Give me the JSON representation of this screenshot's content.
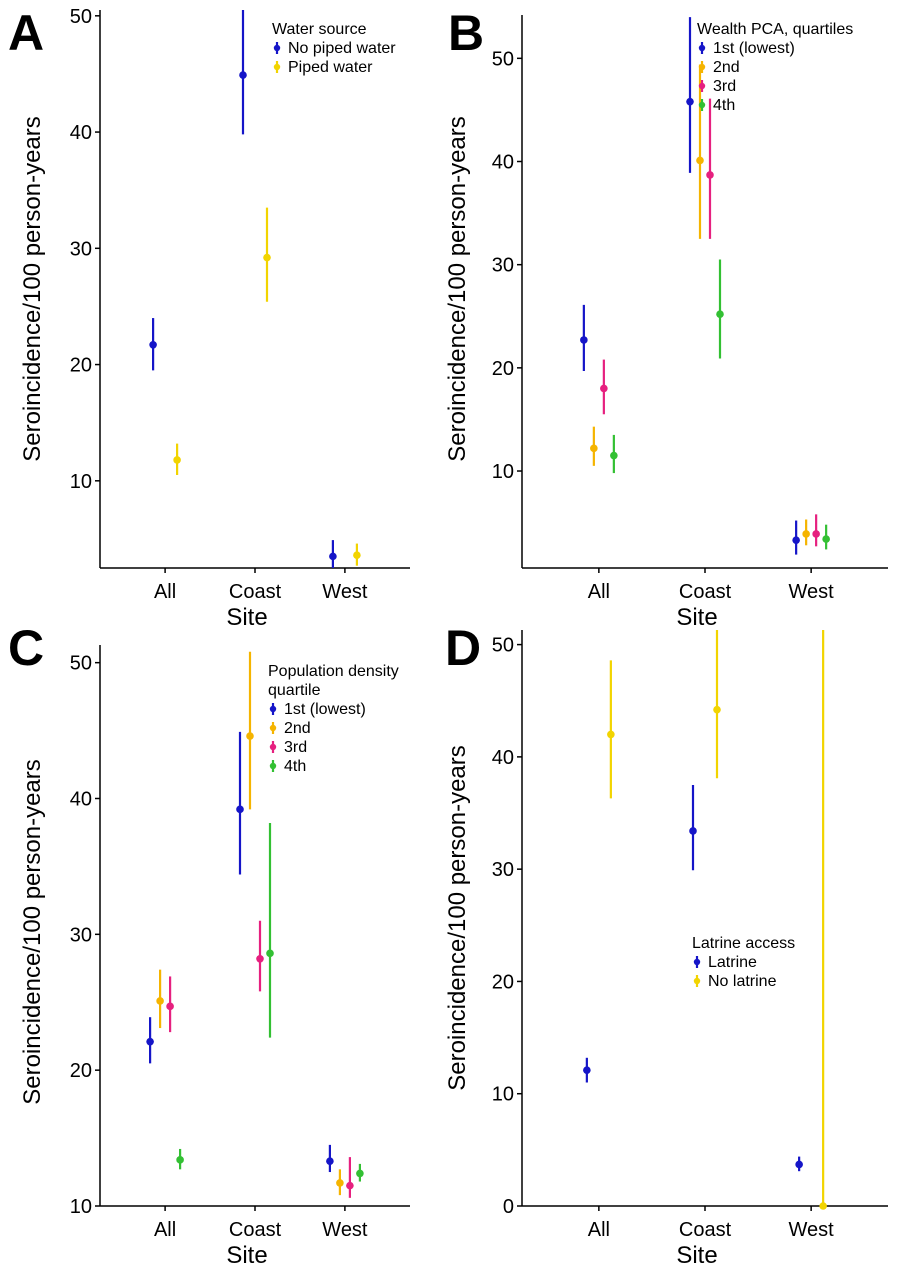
{
  "chart_data": [
    {
      "type": "scatter",
      "panel": "A",
      "ylabel": "Seroincidence/100 person-years",
      "xlabel": "Site",
      "categories": [
        "All",
        "Coast",
        "West"
      ],
      "ylim": [
        2.5,
        50.5
      ],
      "yticks": [
        10,
        20,
        30,
        40,
        50
      ],
      "legend_title": "Water source",
      "legend_position": "top-right",
      "series": [
        {
          "name": "No piped water",
          "color": "#1515c8",
          "points": [
            {
              "x": "All",
              "y": 21.7,
              "low": 19.5,
              "high": 24.0
            },
            {
              "x": "Coast",
              "y": 44.9,
              "low": 39.8,
              "high": 50.5
            },
            {
              "x": "West",
              "y": 3.5,
              "low": 2.5,
              "high": 4.9
            }
          ]
        },
        {
          "name": "Piped water",
          "color": "#f2d400",
          "points": [
            {
              "x": "All",
              "y": 11.8,
              "low": 10.5,
              "high": 13.2
            },
            {
              "x": "Coast",
              "y": 29.2,
              "low": 25.4,
              "high": 33.5
            },
            {
              "x": "West",
              "y": 3.6,
              "low": 2.7,
              "high": 4.6
            }
          ]
        }
      ]
    },
    {
      "type": "scatter",
      "panel": "B",
      "ylabel": "Seroincidence/100 person-years",
      "xlabel": "Site",
      "categories": [
        "All",
        "Coast",
        "West"
      ],
      "ylim": [
        0.6,
        54.2
      ],
      "yticks": [
        10,
        20,
        30,
        40,
        50
      ],
      "legend_title": "Wealth PCA, quartiles",
      "legend_position": "top-right",
      "series": [
        {
          "name": "1st (lowest)",
          "color": "#1515c8",
          "points": [
            {
              "x": "All",
              "y": 22.7,
              "low": 19.7,
              "high": 26.1
            },
            {
              "x": "Coast",
              "y": 45.8,
              "low": 38.9,
              "high": 54.0
            },
            {
              "x": "West",
              "y": 3.3,
              "low": 1.9,
              "high": 5.2
            }
          ]
        },
        {
          "name": "2nd",
          "color": "#f5b400",
          "points": [
            {
              "x": "All",
              "y": 12.2,
              "low": 10.5,
              "high": 14.3
            },
            {
              "x": "Coast",
              "y": 40.1,
              "low": 32.5,
              "high": 49.4
            },
            {
              "x": "West",
              "y": 3.9,
              "low": 2.8,
              "high": 5.3
            }
          ]
        },
        {
          "name": "3rd",
          "color": "#e6207f",
          "points": [
            {
              "x": "All",
              "y": 18.0,
              "low": 15.5,
              "high": 20.8
            },
            {
              "x": "Coast",
              "y": 38.7,
              "low": 32.5,
              "high": 46.1
            },
            {
              "x": "West",
              "y": 3.9,
              "low": 2.7,
              "high": 5.8
            }
          ]
        },
        {
          "name": "4th",
          "color": "#33c033",
          "points": [
            {
              "x": "All",
              "y": 11.5,
              "low": 9.8,
              "high": 13.5
            },
            {
              "x": "Coast",
              "y": 25.2,
              "low": 20.9,
              "high": 30.5
            },
            {
              "x": "West",
              "y": 3.4,
              "low": 2.4,
              "high": 4.8
            }
          ]
        }
      ]
    },
    {
      "type": "scatter",
      "panel": "C",
      "ylabel": "Seroincidence/100 person-years",
      "xlabel": "Site",
      "categories": [
        "All",
        "Coast",
        "West"
      ],
      "ylim": [
        10,
        51.3
      ],
      "yticks": [
        10,
        20,
        30,
        40,
        50
      ],
      "legend_title": "Population density quartile",
      "legend_position": "top-right",
      "series": [
        {
          "name": "1st (lowest)",
          "color": "#1515c8",
          "points": [
            {
              "x": "All",
              "y": 22.1,
              "low": 20.5,
              "high": 23.9
            },
            {
              "x": "Coast",
              "y": 39.2,
              "low": 34.4,
              "high": 44.9
            },
            {
              "x": "West",
              "y": 13.3,
              "low": 12.5,
              "high": 14.5
            }
          ]
        },
        {
          "name": "2nd",
          "color": "#f5b400",
          "points": [
            {
              "x": "All",
              "y": 25.1,
              "low": 23.1,
              "high": 27.4
            },
            {
              "x": "Coast",
              "y": 44.6,
              "low": 39.2,
              "high": 50.8
            },
            {
              "x": "West",
              "y": 11.7,
              "low": 10.8,
              "high": 12.7
            }
          ]
        },
        {
          "name": "3rd",
          "color": "#e6207f",
          "points": [
            {
              "x": "All",
              "y": 24.7,
              "low": 22.8,
              "high": 26.9
            },
            {
              "x": "Coast",
              "y": 28.2,
              "low": 25.8,
              "high": 31.0
            },
            {
              "x": "West",
              "y": 11.5,
              "low": 10.6,
              "high": 13.6
            }
          ]
        },
        {
          "name": "4th",
          "color": "#33c033",
          "points": [
            {
              "x": "All",
              "y": 13.4,
              "low": 12.7,
              "high": 14.2
            },
            {
              "x": "Coast",
              "y": 28.6,
              "low": 22.4,
              "high": 38.2
            },
            {
              "x": "West",
              "y": 12.4,
              "low": 11.8,
              "high": 13.1
            }
          ]
        }
      ]
    },
    {
      "type": "scatter",
      "panel": "D",
      "ylabel": "Seroincidence/100 person-years",
      "xlabel": "Site",
      "categories": [
        "All",
        "Coast",
        "West"
      ],
      "ylim": [
        0,
        51.3
      ],
      "yticks": [
        0,
        10,
        20,
        30,
        40,
        50
      ],
      "legend_title": "Latrine access",
      "legend_position": "center-right",
      "series": [
        {
          "name": "Latrine",
          "color": "#1515c8",
          "points": [
            {
              "x": "All",
              "y": 12.1,
              "low": 11.0,
              "high": 13.2
            },
            {
              "x": "Coast",
              "y": 33.4,
              "low": 29.9,
              "high": 37.5
            },
            {
              "x": "West",
              "y": 3.7,
              "low": 3.1,
              "high": 4.4
            }
          ]
        },
        {
          "name": "No latrine",
          "color": "#f2d400",
          "points": [
            {
              "x": "All",
              "y": 42.0,
              "low": 36.3,
              "high": 48.6
            },
            {
              "x": "Coast",
              "y": 44.2,
              "low": 38.1,
              "high": 51.3
            },
            {
              "x": "West",
              "y": 0,
              "low": 0,
              "high": 51.3
            }
          ]
        }
      ]
    }
  ]
}
